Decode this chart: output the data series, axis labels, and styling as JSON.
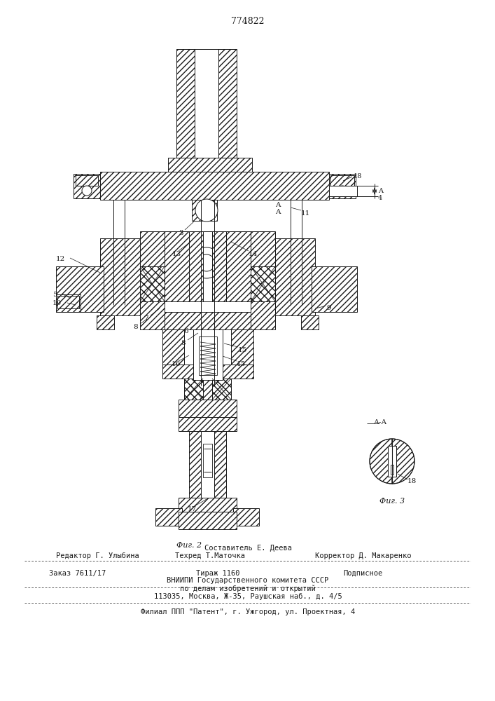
{
  "patent_number": "774822",
  "fig2_label": "Фиг. 2",
  "fig3_label": "Фиг. 3",
  "fig3_title": "А-А",
  "editor_line": "Редактор Г. Улыбина",
  "composer_line": "Составитель Е. Деева",
  "techred_line": "Техред Т.Маточка",
  "corrector_line": "Корректор Д. Макаренко",
  "order_line": "Заказ 7611/17",
  "tirazh_line": "Тираж 1160",
  "podpisnoe_line": "Подписное",
  "vniip_line": "ВНИИПИ Государственного комитета СССР",
  "po_delam_line": "по делам изобретений и открытий",
  "address_line": "113035, Москва, Ж-35, Раушская наб., д. 4/5",
  "filial_line": "Филиал ППП \"Патент\", г. Ужгород, ул. Проектная, 4",
  "bg_color": "#ffffff",
  "line_color": "#1a1a1a"
}
